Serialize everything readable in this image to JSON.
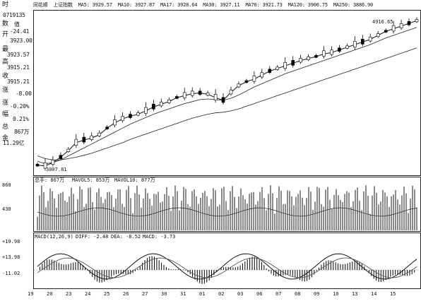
{
  "header": {
    "prefix": "时",
    "app_title": "同花顺",
    "index_name": "上证指数",
    "ma5": "MA5: 3929.57",
    "ma10": "MA10: 3927.87",
    "ma17": "MA17: 3928.64",
    "ma30": "MA30: 3927.11",
    "ma70": "MA70: 3921.73",
    "ma120": "MA120: 3906.75",
    "ma250": "MA250: 3886.90"
  },
  "sidebar": {
    "date": "0719135",
    "rows": [
      {
        "label": "数",
        "value": "值"
      },
      {
        "label": "开",
        "value": "-24.41"
      },
      {
        "label": "最",
        "value": "3923.00"
      },
      {
        "label": "高",
        "value": "3923.57"
      },
      {
        "label": "最",
        "value": "3915.21"
      },
      {
        "label": "收",
        "value": "3915.21"
      },
      {
        "label": "涨",
        "value": "-8.00"
      },
      {
        "label": "涨",
        "value": "-0.20%"
      },
      {
        "label": "幅",
        "value": "0.21%"
      },
      {
        "label": "总",
        "value": "867万"
      },
      {
        "label": "金",
        "value": "11.29亿"
      }
    ]
  },
  "price_chart": {
    "high_label": "4916.65",
    "low_label": "3007.81"
  },
  "volume_chart": {
    "title": "总手: 867万",
    "vol1": "MAVOL5: 853万",
    "vol2": "MAVOL10: 877万",
    "y_top": "860",
    "y_mid": "430"
  },
  "macd_chart": {
    "title": "MACD(12,26,9)",
    "diff": "DIFF: -2.48",
    "dea": "DEA: -8.52",
    "macd": "MACD: -3.73",
    "y_top": "+19.98",
    "y_mid": "+13.98",
    "y_low": "-11.02"
  },
  "x_ticks": [
    "19",
    "20",
    "23",
    "24",
    "25",
    "26",
    "27",
    "30",
    "31",
    "01",
    "02",
    "03",
    "06",
    "07",
    "08",
    "09",
    "10",
    "13",
    "14",
    "15"
  ],
  "chart_data": {
    "type": "line",
    "title": "",
    "series": [
      {
        "name": "",
        "values": [
          3010,
          3005,
          3030,
          3070,
          3120,
          3180,
          3200,
          3215,
          3240,
          3290,
          3330,
          3360,
          3380,
          3395,
          3420,
          3450,
          3470,
          3490,
          3520,
          3535,
          3550,
          3555,
          3545,
          3520,
          3500,
          3560,
          3610,
          3640,
          3660,
          3690,
          3720,
          3740,
          3760,
          3780,
          3800,
          3815,
          3830,
          3850,
          3860,
          3880,
          3900,
          3920,
          3940,
          3960,
          3990,
          4020,
          4040,
          4060,
          4080,
          4100
        ]
      },
      {
        "name": "MA",
        "values": [
          3040,
          3020,
          3030,
          3050,
          3080,
          3110,
          3140,
          3170,
          3200,
          3230,
          3260,
          3290,
          3320,
          3345,
          3370,
          3395,
          3415,
          3435,
          3455,
          3475,
          3490,
          3505,
          3510,
          3505,
          3500,
          3515,
          3540,
          3570,
          3600,
          3625,
          3650,
          3675,
          3700,
          3720,
          3740,
          3760,
          3780,
          3800,
          3820,
          3840,
          3860,
          3880,
          3900,
          3920,
          3945,
          3970,
          3990,
          4010,
          4030,
          4050
        ]
      },
      {
        "name": "MA2",
        "values": [
          3080,
          3060,
          3050,
          3050,
          3060,
          3070,
          3085,
          3100,
          3120,
          3140,
          3160,
          3180,
          3205,
          3225,
          3245,
          3265,
          3285,
          3305,
          3325,
          3345,
          3365,
          3380,
          3395,
          3405,
          3410,
          3420,
          3435,
          3455,
          3475,
          3495,
          3515,
          3535,
          3555,
          3575,
          3595,
          3615,
          3635,
          3655,
          3675,
          3695,
          3715,
          3735,
          3755,
          3775,
          3795,
          3815,
          3835,
          3855,
          3875,
          3895
        ]
      }
    ],
    "ylim": [
      2950,
      4150
    ],
    "grid": false
  }
}
